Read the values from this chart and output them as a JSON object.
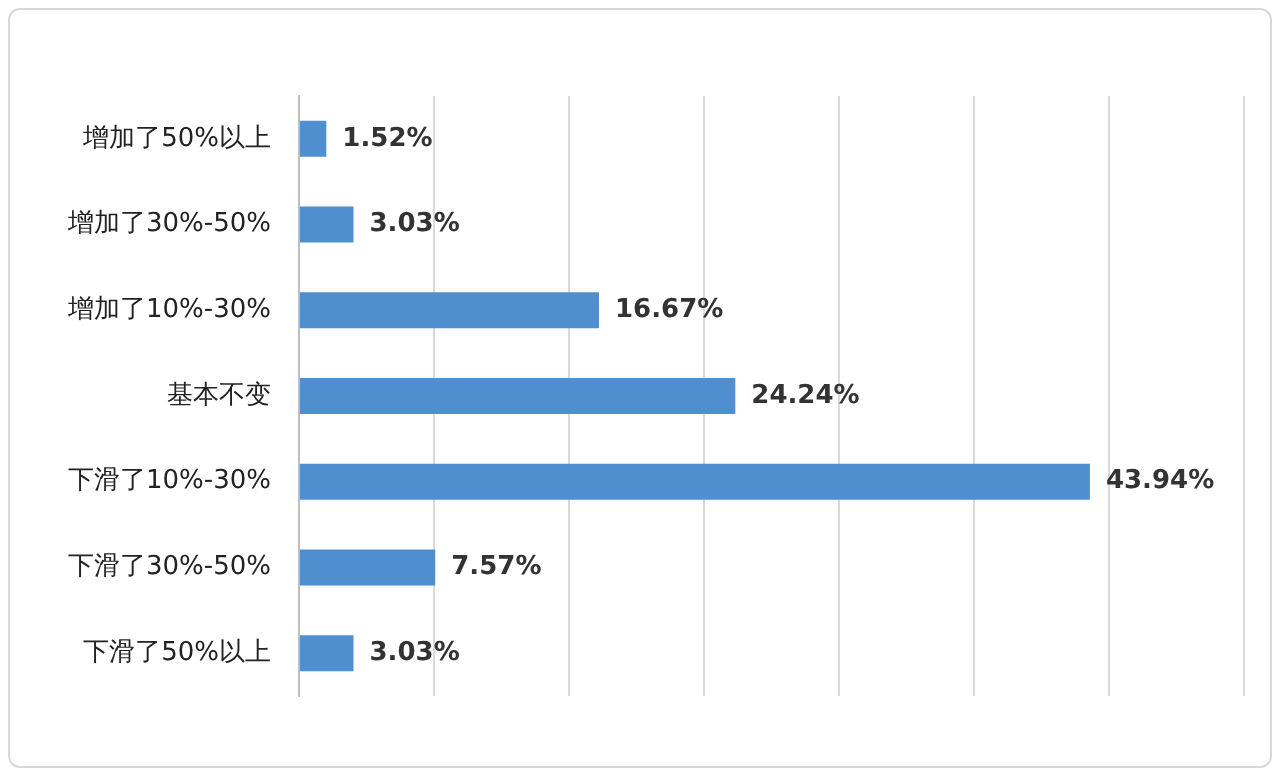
{
  "chart_data": {
    "type": "bar",
    "orientation": "horizontal",
    "categories": [
      "增加了50%以上",
      "增加了30%-50%",
      "增加了10%-30%",
      "基本不变",
      "下滑了10%-30%",
      "下滑了30%-50%",
      "下滑了50%以上"
    ],
    "values": [
      1.52,
      3.03,
      16.67,
      24.24,
      43.94,
      7.57,
      3.03
    ],
    "value_labels": [
      "1.52%",
      "3.03%",
      "16.67%",
      "24.24%",
      "43.94%",
      "7.57%",
      "3.03%"
    ],
    "color": "#4f8fcf",
    "xlim": [
      0,
      52.5
    ],
    "xticks": [
      {
        "value": 0,
        "label": null
      },
      {
        "value": 7.5,
        "label": null
      },
      {
        "value": 15,
        "label": null
      },
      {
        "value": 22.5,
        "label": null
      },
      {
        "value": 30,
        "label": null
      },
      {
        "value": 37.5,
        "label": null
      },
      {
        "value": 45,
        "label": null
      },
      {
        "value": 52.5,
        "label": null
      }
    ],
    "grid": "x",
    "tick_labels": "y",
    "legend": false
  }
}
